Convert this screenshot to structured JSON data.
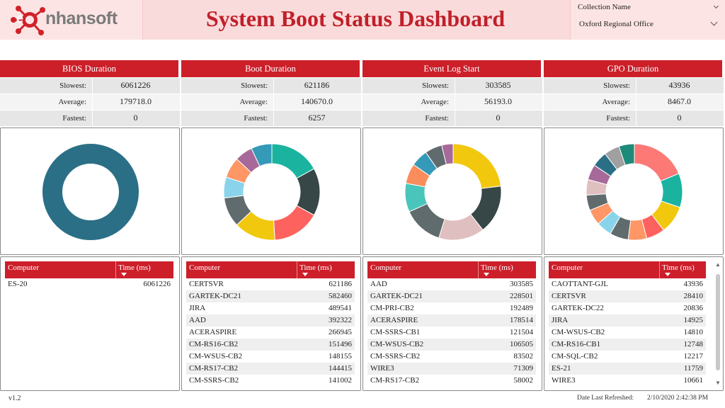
{
  "header": {
    "logo_text_a": "e",
    "logo_text_b": "nhansoft",
    "title": "System Boot Status Dashboard",
    "collection_label": "Collection Name",
    "collection_value": "Oxford Regional Office"
  },
  "panels": [
    {
      "title": "BIOS Duration",
      "stats": [
        {
          "label": "Slowest:",
          "value": "6061226"
        },
        {
          "label": "Average:",
          "value": "179718.0"
        },
        {
          "label": "Fastest:",
          "value": "0"
        }
      ],
      "donut": [
        {
          "value": 100,
          "color": "#2b6f86"
        }
      ],
      "table": {
        "col1": "Computer",
        "col2": "Time (ms)",
        "rows": [
          {
            "computer": "ES-20",
            "time": "6061226"
          }
        ]
      }
    },
    {
      "title": "Boot Duration",
      "stats": [
        {
          "label": "Slowest:",
          "value": "621186"
        },
        {
          "label": "Average:",
          "value": "140670.0"
        },
        {
          "label": "Fastest:",
          "value": "6257"
        }
      ],
      "donut": [
        {
          "value": 17,
          "color": "#1ab3a0"
        },
        {
          "value": 16,
          "color": "#374646"
        },
        {
          "value": 16,
          "color": "#fd625e"
        },
        {
          "value": 14,
          "color": "#f2c80f"
        },
        {
          "value": 10,
          "color": "#5f6b6d"
        },
        {
          "value": 7,
          "color": "#8ad4eb"
        },
        {
          "value": 7,
          "color": "#fe9666"
        },
        {
          "value": 6,
          "color": "#a66999"
        },
        {
          "value": 7,
          "color": "#3599b8"
        }
      ],
      "table": {
        "col1": "Computer",
        "col2": "Time (ms)",
        "rows": [
          {
            "computer": "CERTSVR",
            "time": "621186"
          },
          {
            "computer": "GARTEK-DC21",
            "time": "582460"
          },
          {
            "computer": "JIRA",
            "time": "489541"
          },
          {
            "computer": "AAD",
            "time": "392322"
          },
          {
            "computer": "ACERASPIRE",
            "time": "266945"
          },
          {
            "computer": "CM-RS16-CB2",
            "time": "151496"
          },
          {
            "computer": "CM-WSUS-CB2",
            "time": "148155"
          },
          {
            "computer": "CM-RS17-CB2",
            "time": "144415"
          },
          {
            "computer": "CM-SSRS-CB2",
            "time": "141002"
          }
        ]
      }
    },
    {
      "title": "Event Log Start",
      "stats": [
        {
          "label": "Slowest:",
          "value": "303585"
        },
        {
          "label": "Average:",
          "value": "56193.0"
        },
        {
          "label": "Fastest:",
          "value": "0"
        }
      ],
      "donut": [
        {
          "value": 24,
          "color": "#f2c80f"
        },
        {
          "value": 17,
          "color": "#374646"
        },
        {
          "value": 16,
          "color": "#dfbfbf"
        },
        {
          "value": 14,
          "color": "#5f6b6d"
        },
        {
          "value": 10,
          "color": "#4ac5bb"
        },
        {
          "value": 7,
          "color": "#fb8c5c"
        },
        {
          "value": 6,
          "color": "#3599b8"
        },
        {
          "value": 6,
          "color": "#5f6b6d"
        },
        {
          "value": 4,
          "color": "#a66999"
        }
      ],
      "table": {
        "col1": "Computer",
        "col2": "Time (ms)",
        "rows": [
          {
            "computer": "AAD",
            "time": "303585"
          },
          {
            "computer": "GARTEK-DC21",
            "time": "228501"
          },
          {
            "computer": "CM-PRI-CB2",
            "time": "192489"
          },
          {
            "computer": "ACERASPIRE",
            "time": "178514"
          },
          {
            "computer": "CM-SSRS-CB1",
            "time": "121504"
          },
          {
            "computer": "CM-WSUS-CB2",
            "time": "106505"
          },
          {
            "computer": "CM-SSRS-CB2",
            "time": "83502"
          },
          {
            "computer": "WIRE3",
            "time": "71309"
          },
          {
            "computer": "CM-RS17-CB2",
            "time": "58002"
          }
        ]
      }
    },
    {
      "title": "GPO Duration",
      "stats": [
        {
          "label": "Slowest:",
          "value": "43936"
        },
        {
          "label": "Average:",
          "value": "8467.0"
        },
        {
          "label": "Fastest:",
          "value": "0"
        }
      ],
      "donut": [
        {
          "value": 18,
          "color": "#fd7976"
        },
        {
          "value": 11,
          "color": "#1ab3a0"
        },
        {
          "value": 9,
          "color": "#f2c80f"
        },
        {
          "value": 6,
          "color": "#fd625e"
        },
        {
          "value": 6,
          "color": "#fe9666"
        },
        {
          "value": 6,
          "color": "#5f6b6d"
        },
        {
          "value": 5,
          "color": "#8ad4eb"
        },
        {
          "value": 5,
          "color": "#fe9666"
        },
        {
          "value": 5,
          "color": "#5f6b6d"
        },
        {
          "value": 5,
          "color": "#dfbfbf"
        },
        {
          "value": 5,
          "color": "#a66999"
        },
        {
          "value": 5,
          "color": "#2b6f86"
        },
        {
          "value": 5,
          "color": "#a0a0a0"
        },
        {
          "value": 5,
          "color": "#1e8a7a"
        }
      ],
      "table": {
        "col1": "Computer",
        "col2": "Time (ms)",
        "rows": [
          {
            "computer": "CAOTTANT-GJL",
            "time": "43936"
          },
          {
            "computer": "CERTSVR",
            "time": "28410"
          },
          {
            "computer": "GARTEK-DC22",
            "time": "20836"
          },
          {
            "computer": "JIRA",
            "time": "14925"
          },
          {
            "computer": "CM-WSUS-CB2",
            "time": "14810"
          },
          {
            "computer": "CM-RS16-CB1",
            "time": "12748"
          },
          {
            "computer": "CM-SQL-CB2",
            "time": "12217"
          },
          {
            "computer": "ES-21",
            "time": "11759"
          },
          {
            "computer": "WIRE3",
            "time": "10661"
          }
        ]
      }
    }
  ],
  "footer": {
    "version": "v1.2",
    "refreshed_label": "Date Last Refreshed:",
    "refreshed_value": "2/10/2020 2:42:38 PM"
  }
}
